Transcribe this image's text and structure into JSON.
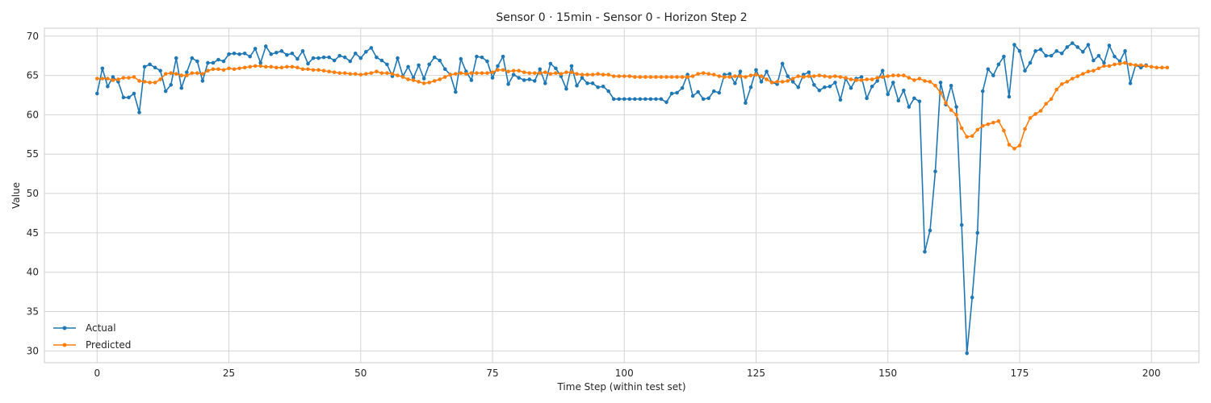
{
  "chart_data": {
    "type": "line",
    "title": "Sensor 0 · 15min - Sensor 0 - Horizon Step 2",
    "xlabel": "Time Step (within test set)",
    "ylabel": "Value",
    "xlim": [
      -10,
      209
    ],
    "ylim": [
      28.5,
      71.0
    ],
    "xticks": [
      0,
      25,
      50,
      75,
      100,
      125,
      150,
      175,
      200
    ],
    "yticks": [
      30,
      35,
      40,
      45,
      50,
      55,
      60,
      65,
      70
    ],
    "grid": true,
    "legend_position": "lower-left",
    "series": [
      {
        "name": "Actual",
        "color": "#1f77b4",
        "values": [
          62.7,
          65.9,
          63.6,
          64.8,
          64.2,
          62.2,
          62.2,
          62.7,
          60.3,
          66.1,
          66.4,
          66.0,
          65.6,
          63.0,
          63.8,
          67.2,
          63.4,
          65.4,
          67.2,
          66.8,
          64.3,
          66.6,
          66.6,
          67.0,
          66.8,
          67.7,
          67.8,
          67.7,
          67.8,
          67.4,
          68.4,
          66.6,
          68.7,
          67.7,
          67.9,
          68.1,
          67.6,
          67.8,
          67.1,
          68.1,
          66.5,
          67.2,
          67.2,
          67.3,
          67.3,
          66.9,
          67.5,
          67.3,
          66.8,
          67.8,
          67.2,
          68.0,
          68.5,
          67.3,
          66.9,
          66.4,
          64.9,
          67.2,
          64.9,
          66.1,
          64.7,
          66.3,
          64.6,
          66.4,
          67.3,
          66.9,
          65.8,
          65.1,
          62.9,
          67.1,
          65.5,
          64.4,
          67.4,
          67.3,
          66.8,
          64.7,
          66.2,
          67.4,
          63.9,
          65.1,
          64.7,
          64.4,
          64.5,
          64.3,
          65.8,
          64.0,
          66.5,
          65.9,
          64.9,
          63.3,
          66.2,
          63.7,
          64.7,
          64.0,
          64.0,
          63.5,
          63.6,
          63.0,
          62.0,
          62.0,
          62.0,
          62.0,
          62.0,
          62.0,
          62.0,
          62.0,
          62.0,
          62.0,
          61.6,
          62.7,
          62.8,
          63.4,
          65.1,
          62.4,
          62.9,
          62.0,
          62.1,
          63.0,
          62.8,
          65.1,
          65.2,
          64.0,
          65.5,
          61.5,
          63.5,
          65.7,
          64.2,
          65.5,
          64.1,
          63.9,
          66.5,
          64.9,
          64.2,
          63.5,
          65.1,
          65.4,
          63.8,
          63.1,
          63.5,
          63.6,
          64.1,
          61.9,
          64.6,
          63.4,
          64.6,
          64.8,
          62.1,
          63.6,
          64.3,
          65.6,
          62.6,
          64.1,
          61.8,
          63.1,
          61.0,
          62.1,
          61.7,
          42.6,
          45.3,
          52.8,
          64.1,
          61.3,
          63.7,
          61.0,
          46.0,
          29.7,
          36.8,
          45.0,
          63.0,
          65.8,
          65.0,
          66.4,
          67.4,
          62.3,
          68.9,
          68.1,
          65.6,
          66.6,
          68.1,
          68.3,
          67.5,
          67.5,
          68.1,
          67.8,
          68.6,
          69.1,
          68.6,
          68.0,
          68.9,
          66.9,
          67.5,
          66.6,
          68.8,
          67.4,
          66.8,
          68.1,
          64.0,
          66.3,
          66.0,
          66.3
        ]
      },
      {
        "name": "Predicted",
        "color": "#ff7f0e",
        "values": [
          64.6,
          64.6,
          64.6,
          64.4,
          64.5,
          64.7,
          64.7,
          64.8,
          64.3,
          64.2,
          64.1,
          64.1,
          64.5,
          65.2,
          65.3,
          65.2,
          65.0,
          65.0,
          65.3,
          65.3,
          65.2,
          65.6,
          65.8,
          65.8,
          65.7,
          65.9,
          65.8,
          65.9,
          66.0,
          66.1,
          66.2,
          66.2,
          66.1,
          66.1,
          66.0,
          66.0,
          66.1,
          66.1,
          66.0,
          65.8,
          65.8,
          65.7,
          65.7,
          65.6,
          65.5,
          65.4,
          65.3,
          65.3,
          65.2,
          65.2,
          65.1,
          65.2,
          65.3,
          65.5,
          65.3,
          65.3,
          65.2,
          65.0,
          64.8,
          64.5,
          64.4,
          64.2,
          64.0,
          64.1,
          64.3,
          64.5,
          64.8,
          65.1,
          65.2,
          65.3,
          65.2,
          65.3,
          65.3,
          65.3,
          65.3,
          65.4,
          65.7,
          65.7,
          65.5,
          65.6,
          65.6,
          65.4,
          65.3,
          65.3,
          65.3,
          65.4,
          65.2,
          65.3,
          65.2,
          65.4,
          65.4,
          65.2,
          65.1,
          65.1,
          65.1,
          65.2,
          65.1,
          65.1,
          64.9,
          64.9,
          64.9,
          64.9,
          64.8,
          64.8,
          64.8,
          64.8,
          64.8,
          64.8,
          64.8,
          64.8,
          64.8,
          64.8,
          64.8,
          64.9,
          65.2,
          65.3,
          65.2,
          65.1,
          64.9,
          64.8,
          64.8,
          64.9,
          64.9,
          64.8,
          65.0,
          65.1,
          64.9,
          64.5,
          64.1,
          64.2,
          64.2,
          64.3,
          64.6,
          64.9,
          64.8,
          64.9,
          64.9,
          65.0,
          64.9,
          64.8,
          64.9,
          64.8,
          64.7,
          64.5,
          64.4,
          64.4,
          64.5,
          64.5,
          64.7,
          64.8,
          64.9,
          65.0,
          65.0,
          65.0,
          64.7,
          64.4,
          64.6,
          64.3,
          64.2,
          63.7,
          62.8,
          61.5,
          60.6,
          60.0,
          58.3,
          57.2,
          57.3,
          58.1,
          58.6,
          58.8,
          59.0,
          59.2,
          58.0,
          56.2,
          55.7,
          56.1,
          58.2,
          59.6,
          60.1,
          60.5,
          61.4,
          62.0,
          63.2,
          63.9,
          64.2,
          64.6,
          64.9,
          65.2,
          65.5,
          65.6,
          65.9,
          66.2,
          66.2,
          66.4,
          66.5,
          66.6,
          66.4,
          66.3,
          66.3,
          66.2,
          66.1,
          66.0,
          66.0,
          66.0
        ]
      }
    ]
  }
}
